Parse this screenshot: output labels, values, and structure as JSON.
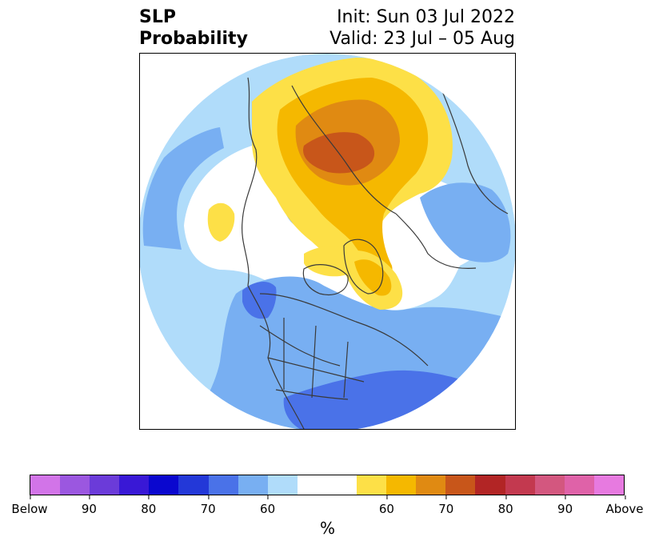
{
  "title": {
    "left_line1": "SLP",
    "left_line2": "Probability",
    "right_line1": "Init: Sun 03 Jul 2022",
    "right_line2": "Valid: 23 Jul – 05 Aug"
  },
  "colorbar": {
    "colors": [
      "#d274e8",
      "#9b57e0",
      "#6b3bd9",
      "#3918d6",
      "#0a07cf",
      "#2338d8",
      "#4a72e8",
      "#78aff2",
      "#b0dcfa",
      "#ffffff",
      "#ffffff",
      "#fde047",
      "#f5b800",
      "#e08a12",
      "#c8561a",
      "#b22525",
      "#c3394f",
      "#d3577f",
      "#df62a8",
      "#e77ae0"
    ],
    "tick_labels": [
      "Below",
      "90",
      "80",
      "70",
      "60",
      "60",
      "70",
      "80",
      "90",
      "Above"
    ],
    "unit_label": "%"
  },
  "map": {
    "projection": "polar-stereographic-north",
    "below_colors": [
      "#b0dcfa",
      "#78aff2",
      "#4a72e8"
    ],
    "above_colors": [
      "#fde047",
      "#f5b800",
      "#e08a12",
      "#c8561a"
    ],
    "border_color": "#3a3a3a"
  }
}
